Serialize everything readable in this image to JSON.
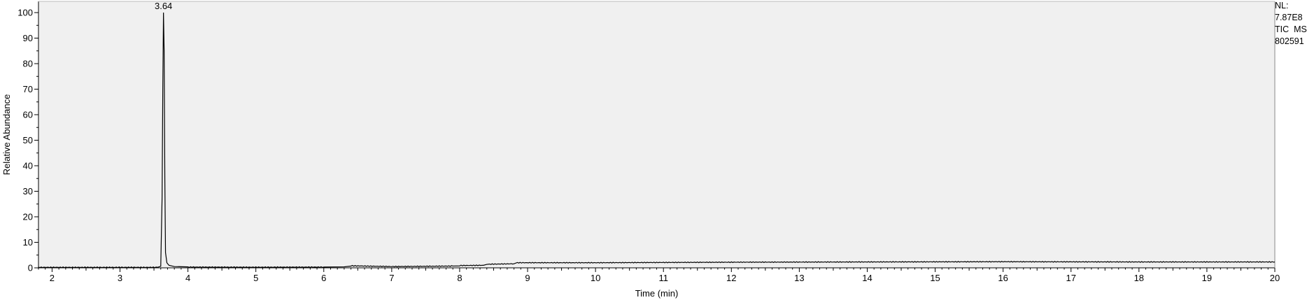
{
  "normalization": {
    "nl_label": "NL:",
    "nl_value": "7.87E8",
    "trace_type": "TIC  MS",
    "file_name": "802591"
  },
  "chart_data": {
    "type": "line",
    "title": "",
    "xlabel": "Time (min)",
    "ylabel": "Relative Abundance",
    "xlim": [
      1.8,
      20.0
    ],
    "ylim": [
      0,
      100
    ],
    "x_ticks": [
      2,
      3,
      4,
      5,
      6,
      7,
      8,
      9,
      10,
      11,
      12,
      13,
      14,
      15,
      16,
      17,
      18,
      19,
      20
    ],
    "y_ticks": [
      0,
      10,
      20,
      30,
      40,
      50,
      60,
      70,
      80,
      90,
      100
    ],
    "grid": false,
    "plot_background": "#f0f0f0",
    "line_color": "#000000",
    "annotations": [
      {
        "label": "3.64",
        "x": 3.64,
        "y": 100
      }
    ],
    "series": [
      {
        "x": [
          1.8,
          3.55,
          3.6,
          3.62,
          3.63,
          3.64,
          3.65,
          3.66,
          3.67,
          3.69,
          3.72,
          3.8,
          4.0,
          5.0,
          6.0,
          6.3,
          6.4,
          7.0,
          7.5,
          7.9,
          8.0,
          8.35,
          8.4,
          8.8,
          8.85,
          10.0,
          12.0,
          14.0,
          16.0,
          18.0,
          20.0
        ],
        "y": [
          0.2,
          0.2,
          0.6,
          28,
          70,
          100,
          85,
          35,
          6,
          2,
          1,
          0.5,
          0.3,
          0.25,
          0.3,
          0.4,
          0.8,
          0.5,
          0.6,
          0.7,
          0.9,
          1.0,
          1.4,
          1.6,
          2.0,
          2.0,
          2.2,
          2.3,
          2.4,
          2.3,
          2.3
        ]
      }
    ]
  }
}
